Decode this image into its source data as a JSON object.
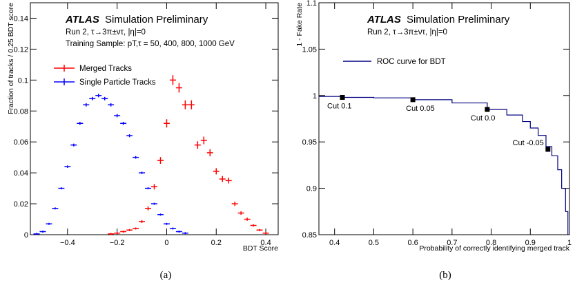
{
  "chart_data": [
    {
      "type": "scatter",
      "caption": "(a)",
      "header": {
        "brand": "ATLAS",
        "subtitle": "Simulation Preliminary",
        "line1": "Run 2, τ→3π±ντ, |η|=0",
        "line2": "Training Sample: pT,τ = 50, 400, 800, 1000 GeV"
      },
      "xlabel": "BDT Score",
      "ylabel": "Fraction of tracks / 0.25 BDT score",
      "xlim": [
        -0.55,
        0.45
      ],
      "ylim": [
        0,
        0.15
      ],
      "xticks": [
        -0.4,
        -0.2,
        0,
        0.2,
        0.4
      ],
      "xtick_labels": [
        "−0.4",
        "−0.2",
        "0",
        "0.2",
        "0.4"
      ],
      "yticks": [
        0,
        0.02,
        0.04,
        0.06,
        0.08,
        0.1,
        0.12,
        0.14
      ],
      "ytick_labels": [
        "0",
        "0.02",
        "0.04",
        "0.06",
        "0.08",
        "0.1",
        "0.12",
        "0.14"
      ],
      "legend_placement": "upper-left",
      "series": [
        {
          "name": "Merged Tracks",
          "color": "#ff0000",
          "x": [
            -0.225,
            -0.2,
            -0.175,
            -0.15,
            -0.125,
            -0.1,
            -0.075,
            -0.05,
            -0.025,
            0,
            0.025,
            0.05,
            0.075,
            0.1,
            0.125,
            0.15,
            0.175,
            0.2,
            0.225,
            0.25,
            0.275,
            0.3,
            0.325,
            0.35,
            0.375,
            0.4
          ],
          "y": [
            0.0005,
            0.001,
            0.002,
            0.003,
            0.004,
            0.0085,
            0.017,
            0.031,
            0.048,
            0.072,
            0.1,
            0.095,
            0.084,
            0.084,
            0.058,
            0.061,
            0.053,
            0.041,
            0.036,
            0.035,
            0.02,
            0.014,
            0.01,
            0.006,
            0.003,
            0.001
          ]
        },
        {
          "name": "Single Particle Tracks",
          "color": "#0000ff",
          "x": [
            -0.525,
            -0.5,
            -0.475,
            -0.45,
            -0.425,
            -0.4,
            -0.375,
            -0.35,
            -0.325,
            -0.3,
            -0.275,
            -0.25,
            -0.225,
            -0.2,
            -0.175,
            -0.15,
            -0.125,
            -0.1,
            -0.075,
            -0.05,
            -0.025,
            0,
            0.025,
            0.05,
            0.075
          ],
          "y": [
            0.0005,
            0.002,
            0.007,
            0.017,
            0.03,
            0.044,
            0.058,
            0.072,
            0.084,
            0.088,
            0.09,
            0.088,
            0.084,
            0.077,
            0.072,
            0.064,
            0.05,
            0.04,
            0.03,
            0.02,
            0.013,
            0.007,
            0.004,
            0.002,
            0.001
          ]
        }
      ]
    },
    {
      "type": "line",
      "caption": "(b)",
      "header": {
        "brand": "ATLAS",
        "subtitle": "Simulation Preliminary",
        "line1": "Run 2, τ→3π±ντ, |η|=0"
      },
      "xlabel": "Probability of correctly identifying merged track",
      "ylabel": "1 - Fake Rate",
      "xlim": [
        0.36,
        1.0
      ],
      "ylim": [
        0.85,
        1.1
      ],
      "xticks": [
        0.4,
        0.5,
        0.6,
        0.7,
        0.8,
        0.9,
        1.0
      ],
      "xtick_labels": [
        "0.4",
        "0.5",
        "0.6",
        "0.7",
        "0.8",
        "0.9",
        "1"
      ],
      "yticks": [
        0.85,
        0.9,
        0.95,
        1.0,
        1.05,
        1.1
      ],
      "ytick_labels": [
        "0.85",
        "0.9",
        "0.95",
        "1",
        "1.05",
        "1.1"
      ],
      "legend_placement": "upper-left",
      "series": [
        {
          "name": "ROC curve for BDT",
          "color": "#000080",
          "x": [
            0.36,
            0.42,
            0.5,
            0.6,
            0.7,
            0.79,
            0.84,
            0.88,
            0.9,
            0.92,
            0.94,
            0.955,
            0.97,
            0.98,
            0.99,
            0.996
          ],
          "y": [
            0.999,
            0.998,
            0.9975,
            0.9955,
            0.992,
            0.985,
            0.979,
            0.972,
            0.965,
            0.957,
            0.945,
            0.935,
            0.92,
            0.9,
            0.875,
            0.85
          ]
        }
      ],
      "annotations": [
        {
          "label": "Cut 0.1",
          "x": 0.42,
          "y": 0.998
        },
        {
          "label": "Cut 0.05",
          "x": 0.6,
          "y": 0.9955
        },
        {
          "label": "Cut 0.0",
          "x": 0.79,
          "y": 0.985
        },
        {
          "label": "Cut -0.05",
          "x": 0.945,
          "y": 0.942
        }
      ]
    }
  ]
}
